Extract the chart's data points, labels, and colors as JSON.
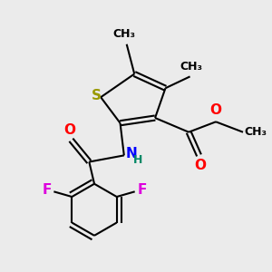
{
  "background_color": "#ebebeb",
  "atom_colors": {
    "S": "#999900",
    "N": "#0000ff",
    "O": "#ff0000",
    "F": "#dd00dd",
    "H": "#008866",
    "C": "#000000"
  },
  "bond_color": "#000000",
  "bond_width": 1.5,
  "font_size_atom": 11,
  "font_size_small": 9,
  "xlim": [
    0,
    10
  ],
  "ylim": [
    0,
    10
  ]
}
